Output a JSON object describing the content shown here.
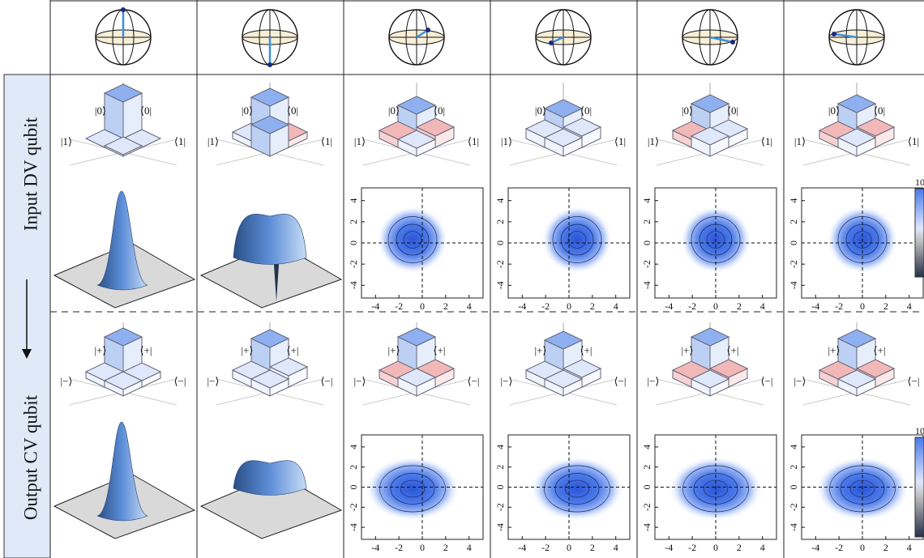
{
  "rows": {
    "input": {
      "label": "Input DV qubit",
      "kets": [
        "|1⟩",
        "|0⟩",
        "⟨0|",
        "⟨1|"
      ]
    },
    "output": {
      "label": "Output CV qubit",
      "kets": [
        "|−⟩",
        "|+⟩",
        "⟨+|",
        "⟨−|"
      ]
    }
  },
  "wigner_ticks": [
    -4,
    -2,
    0,
    2,
    4
  ],
  "colorbar_label": "10"
}
